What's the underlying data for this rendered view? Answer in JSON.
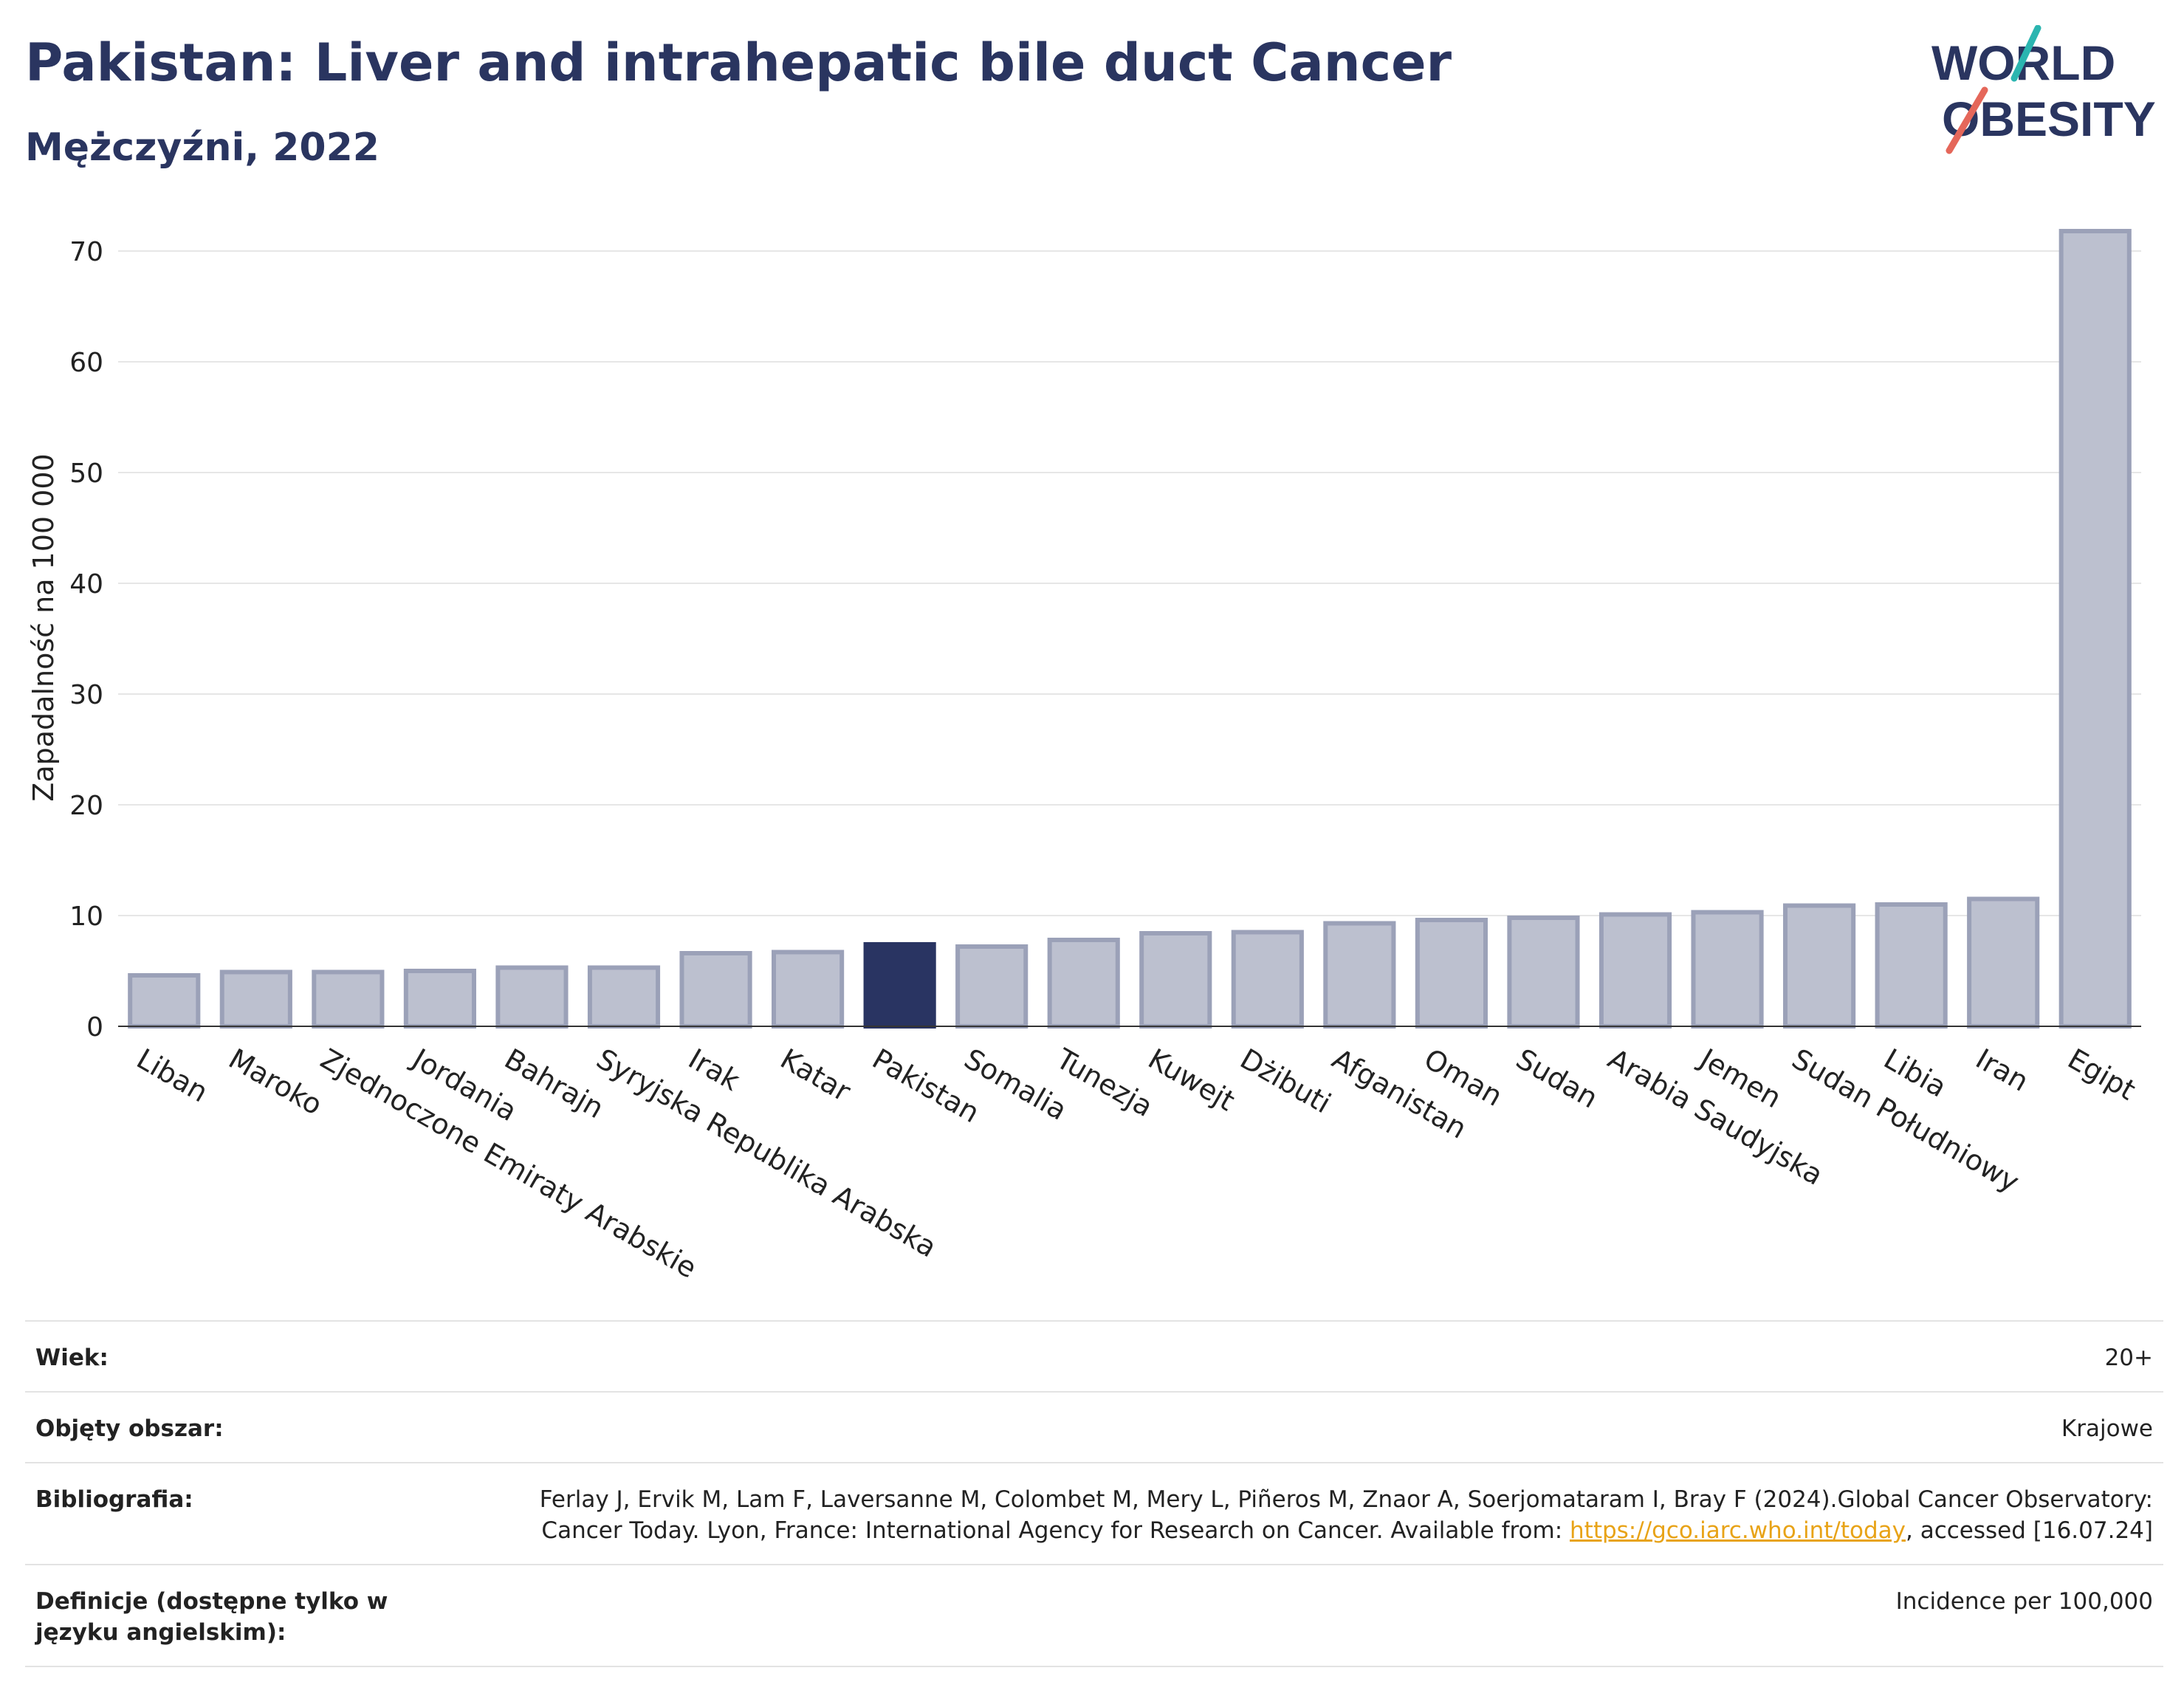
{
  "header": {
    "title": "Pakistan: Liver and intrahepatic bile duct Cancer",
    "subtitle": "Mężczyźni, 2022"
  },
  "logo": {
    "line1": "WORLD",
    "line2": "OBESITY",
    "accent_teal": "#2bb5b0",
    "accent_red": "#e5675a",
    "text_color": "#2a3560"
  },
  "chart_data": {
    "type": "bar",
    "title": "Pakistan: Liver and intrahepatic bile duct Cancer",
    "subtitle": "Mężczyźni, 2022",
    "xlabel": "",
    "ylabel": "Zapadalność na 100 000",
    "ylim": [
      0,
      72
    ],
    "yticks": [
      0,
      10,
      20,
      30,
      40,
      50,
      60,
      70
    ],
    "grid": true,
    "highlight": "Pakistan",
    "bar_color": "#bcc0cf",
    "bar_edge_color": "#9ba1b8",
    "highlight_color": "#293462",
    "categories": [
      "Liban",
      "Maroko",
      "Zjednoczone Emiraty Arabskie",
      "Jordania",
      "Bahrajn",
      "Syryjska Republika Arabska",
      "Irak",
      "Katar",
      "Pakistan",
      "Somalia",
      "Tunezja",
      "Kuwejt",
      "Dżibuti",
      "Afganistan",
      "Oman",
      "Sudan",
      "Arabia Saudyjska",
      "Jemen",
      "Sudan Południowy",
      "Libia",
      "Iran",
      "Egipt"
    ],
    "values": [
      4.6,
      4.9,
      4.9,
      5.0,
      5.3,
      5.3,
      6.6,
      6.7,
      7.4,
      7.2,
      7.8,
      8.4,
      8.5,
      9.3,
      9.6,
      9.8,
      10.1,
      10.3,
      10.9,
      11.0,
      11.5,
      71.8
    ]
  },
  "info": {
    "rows": [
      {
        "label": "Wiek:",
        "value": "20+"
      },
      {
        "label": "Objęty obszar:",
        "value": "Krajowe"
      },
      {
        "label": "Bibliografia:",
        "value_pre": "Ferlay J, Ervik M, Lam F, Laversanne M, Colombet M, Mery L, Piñeros M, Znaor A, Soerjomataram I, Bray F (2024).Global Cancer Observatory: Cancer Today. Lyon, France: International Agency for Research on Cancer. Available from: ",
        "link": "https://gco.iarc.who.int/today",
        "value_post": ", accessed [16.07.24]"
      },
      {
        "label": "Definicje (dostępne tylko w języku angielskim):",
        "value": "Incidence per 100,000"
      }
    ]
  }
}
